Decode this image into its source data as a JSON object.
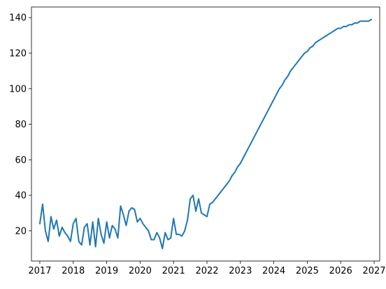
{
  "chart_data": {
    "type": "line",
    "title": "",
    "xlabel": "",
    "ylabel": "",
    "xlim": [
      "2016-10-01",
      "2027-03-01"
    ],
    "ylim": [
      3,
      146
    ],
    "grid": false,
    "legend": "none",
    "x_ticks": [
      "2017",
      "2018",
      "2019",
      "2020",
      "2021",
      "2022",
      "2023",
      "2024",
      "2025",
      "2026",
      "2027"
    ],
    "y_ticks": [
      20,
      40,
      60,
      80,
      100,
      120,
      140
    ],
    "series": [
      {
        "color": "#1f77b4",
        "x": [
          "2017-01",
          "2017-02",
          "2017-03",
          "2017-04",
          "2017-05",
          "2017-06",
          "2017-07",
          "2017-08",
          "2017-09",
          "2017-10",
          "2017-11",
          "2017-12",
          "2018-01",
          "2018-02",
          "2018-03",
          "2018-04",
          "2018-05",
          "2018-06",
          "2018-07",
          "2018-08",
          "2018-09",
          "2018-10",
          "2018-11",
          "2018-12",
          "2019-01",
          "2019-02",
          "2019-03",
          "2019-04",
          "2019-05",
          "2019-06",
          "2019-07",
          "2019-08",
          "2019-09",
          "2019-10",
          "2019-11",
          "2019-12",
          "2020-01",
          "2020-02",
          "2020-03",
          "2020-04",
          "2020-05",
          "2020-06",
          "2020-07",
          "2020-08",
          "2020-09",
          "2020-10",
          "2020-11",
          "2020-12",
          "2021-01",
          "2021-02",
          "2021-03",
          "2021-04",
          "2021-05",
          "2021-06",
          "2021-07",
          "2021-08",
          "2021-09",
          "2021-10",
          "2021-11",
          "2021-12",
          "2022-01",
          "2022-02",
          "2022-03",
          "2022-04",
          "2022-05",
          "2022-06",
          "2022-07",
          "2022-08",
          "2022-09",
          "2022-10",
          "2022-11",
          "2022-12",
          "2023-01",
          "2023-02",
          "2023-03",
          "2023-04",
          "2023-05",
          "2023-06",
          "2023-07",
          "2023-08",
          "2023-09",
          "2023-10",
          "2023-11",
          "2023-12",
          "2024-01",
          "2024-02",
          "2024-03",
          "2024-04",
          "2024-05",
          "2024-06",
          "2024-07",
          "2024-08",
          "2024-09",
          "2024-10",
          "2024-11",
          "2024-12",
          "2025-01",
          "2025-02",
          "2025-03",
          "2025-04",
          "2025-05",
          "2025-06",
          "2025-07",
          "2025-08",
          "2025-09",
          "2025-10",
          "2025-11",
          "2025-12",
          "2026-01",
          "2026-02",
          "2026-03",
          "2026-04",
          "2026-05",
          "2026-06",
          "2026-07",
          "2026-08",
          "2026-09",
          "2026-10",
          "2026-11",
          "2026-12"
        ],
        "y": [
          24,
          35,
          20,
          14,
          28,
          21,
          26,
          17,
          22,
          19,
          17,
          14,
          24,
          27,
          14,
          12,
          22,
          24,
          12,
          25,
          11,
          27,
          18,
          13,
          25,
          16,
          23,
          21,
          16,
          34,
          29,
          23,
          31,
          33,
          32,
          25,
          27,
          24,
          22,
          20,
          15,
          15,
          19,
          16,
          10,
          19,
          15,
          16,
          27,
          18,
          18,
          17,
          20,
          26,
          38,
          40,
          31,
          38,
          30,
          29,
          28,
          35,
          36,
          38,
          40,
          42,
          44,
          46,
          48,
          51,
          53,
          56,
          58,
          61,
          64,
          67,
          70,
          73,
          76,
          79,
          82,
          85,
          88,
          91,
          94,
          97,
          100,
          102,
          105,
          107,
          110,
          112,
          114,
          116,
          118,
          120,
          121,
          123,
          124,
          126,
          127,
          128,
          129,
          130,
          131,
          132,
          133,
          134,
          134,
          135,
          135,
          136,
          136,
          137,
          137,
          138,
          138,
          138,
          138,
          139
        ]
      }
    ]
  }
}
